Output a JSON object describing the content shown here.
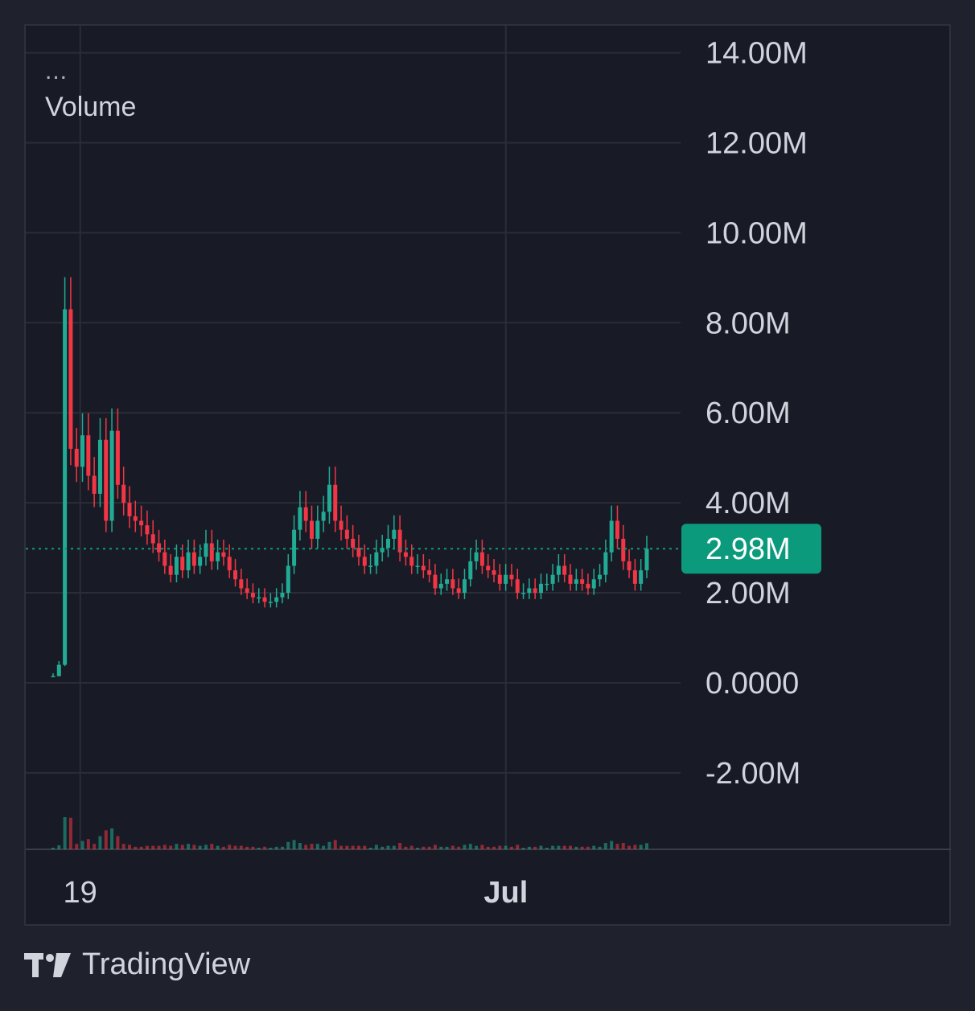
{
  "legend": {
    "menu": "...",
    "title": "Volume"
  },
  "brand": {
    "name": "TradingView"
  },
  "colors": {
    "background": "#181b25",
    "grid": "#2a2d37",
    "up": "#22ab94",
    "down": "#f23645",
    "price_label_bg": "#0b9b7c",
    "text": "#d1d4dc"
  },
  "chart_data": {
    "type": "candlestick",
    "title": "",
    "series_label": "Volume",
    "y_ticks": [
      {
        "value": 14000000,
        "label": "14.00M"
      },
      {
        "value": 12000000,
        "label": "12.00M"
      },
      {
        "value": 10000000,
        "label": "10.00M"
      },
      {
        "value": 8000000,
        "label": "8.00M"
      },
      {
        "value": 6000000,
        "label": "6.00M"
      },
      {
        "value": 4000000,
        "label": "4.00M"
      },
      {
        "value": 2000000,
        "label": "2.00M"
      },
      {
        "value": 0,
        "label": "0.0000"
      },
      {
        "value": -2000000,
        "label": "-2.00M"
      }
    ],
    "ylim": [
      -3700000,
      14600000
    ],
    "x_ticks": [
      {
        "label": "19",
        "position": 0.05,
        "bold": false
      },
      {
        "label": "Jul",
        "position": 0.7,
        "bold": true
      }
    ],
    "last_value": 2980000,
    "last_value_label": "2.98M",
    "grid": true,
    "closes_approx_millions": [
      0.15,
      0.4,
      8.3,
      5.2,
      4.8,
      5.5,
      4.6,
      4.2,
      5.4,
      3.6,
      5.6,
      4.4,
      4.0,
      3.7,
      3.6,
      3.5,
      3.3,
      3.1,
      2.9,
      2.6,
      2.4,
      2.8,
      2.5,
      2.9,
      2.6,
      2.8,
      3.1,
      2.7,
      2.9,
      2.8,
      2.5,
      2.3,
      2.1,
      2.0,
      1.9,
      1.9,
      1.8,
      1.8,
      1.9,
      2.0,
      2.6,
      3.4,
      3.9,
      3.6,
      3.2,
      3.6,
      3.8,
      4.4,
      3.6,
      3.4,
      3.2,
      3.0,
      2.8,
      2.6,
      2.6,
      2.9,
      3.0,
      3.2,
      3.4,
      2.9,
      2.8,
      2.6,
      2.6,
      2.5,
      2.4,
      2.1,
      2.2,
      2.3,
      2.1,
      2.0,
      2.3,
      2.7,
      2.9,
      2.6,
      2.5,
      2.4,
      2.2,
      2.4,
      2.3,
      2.0,
      2.0,
      2.1,
      2.0,
      2.2,
      2.2,
      2.4,
      2.6,
      2.4,
      2.2,
      2.3,
      2.2,
      2.1,
      2.3,
      2.4,
      2.9,
      3.6,
      3.2,
      2.7,
      2.5,
      2.2,
      2.5,
      2.98
    ]
  }
}
